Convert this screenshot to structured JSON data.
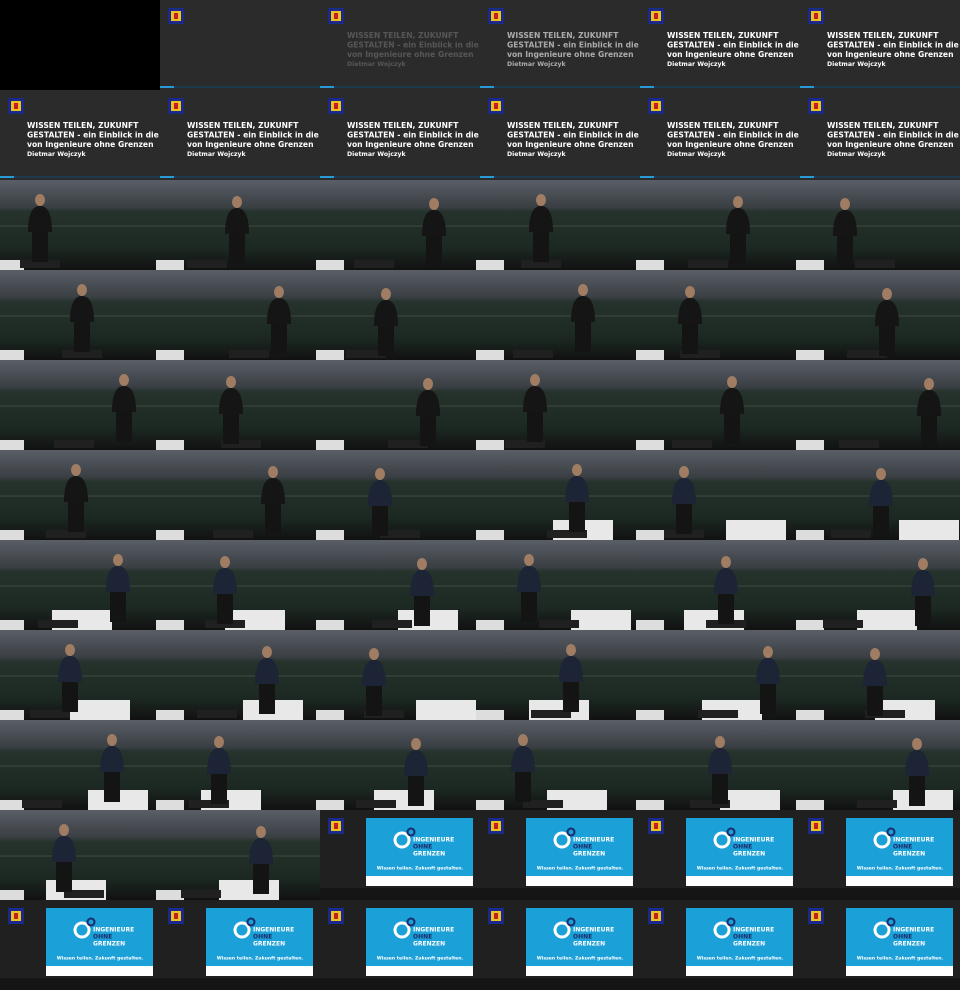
{
  "talk": {
    "title_lines": [
      "WISSEN TEILEN, ZUKUNFT",
      "GESTALTEN - ein Einblick in die Arbeit",
      "von Ingenieure ohne Grenzen"
    ],
    "speaker": "Dietmar Wojczyk"
  },
  "slide": {
    "logo_lines": [
      "INGENIEURE",
      "OHNE",
      "GRENZEN"
    ],
    "tagline": "Wissen teilen. Zukunft gestalten."
  }
}
